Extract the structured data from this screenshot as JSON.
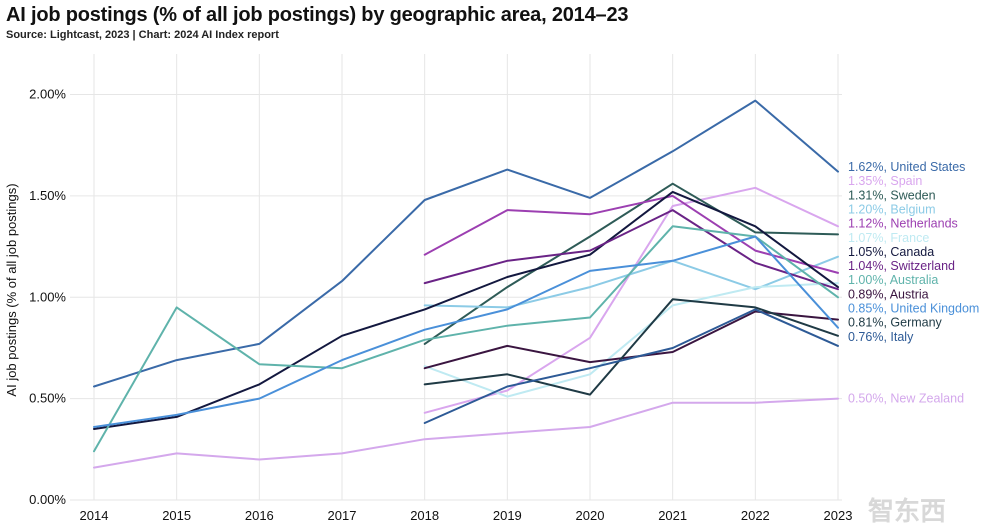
{
  "chart_data": {
    "type": "line",
    "title": "AI job postings (% of all job postings) by geographic area, 2014–23",
    "subtitle": "Source: Lightcast, 2023 | Chart: 2024 AI Index report",
    "ylabel": "AI job postings (% of all job postings)",
    "xlabel": "",
    "x": [
      2014,
      2015,
      2016,
      2017,
      2018,
      2019,
      2020,
      2021,
      2022,
      2023
    ],
    "x_tick_labels": [
      "2014",
      "2015",
      "2016",
      "2017",
      "2018",
      "2019",
      "2020",
      "2021",
      "2022",
      "2023"
    ],
    "ylim": [
      0,
      2.2
    ],
    "y_ticks": [
      0,
      0.5,
      1.0,
      1.5,
      2.0
    ],
    "y_tick_labels": [
      "0.00%",
      "0.50%",
      "1.00%",
      "1.50%",
      "2.00%"
    ],
    "grid": true,
    "series": [
      {
        "name": "United States",
        "label": "1.62%, United States",
        "color": "#3a6aa8",
        "x": [
          2014,
          2015,
          2016,
          2017,
          2018,
          2019,
          2020,
          2021,
          2022,
          2023
        ],
        "values": [
          0.56,
          0.69,
          0.77,
          1.08,
          1.48,
          1.63,
          1.49,
          1.72,
          1.97,
          1.62
        ]
      },
      {
        "name": "Spain",
        "label": "1.35%, Spain",
        "color": "#d9a6ee",
        "x": [
          2018,
          2019,
          2020,
          2021,
          2022,
          2023
        ],
        "values": [
          0.43,
          0.54,
          0.8,
          1.45,
          1.54,
          1.35
        ]
      },
      {
        "name": "Sweden",
        "label": "1.31%, Sweden",
        "color": "#2e5b57",
        "x": [
          2018,
          2019,
          2020,
          2021,
          2022,
          2023
        ],
        "values": [
          0.77,
          1.05,
          1.3,
          1.56,
          1.32,
          1.31
        ]
      },
      {
        "name": "Belgium",
        "label": "1.20%, Belgium",
        "color": "#8ccbe6",
        "x": [
          2018,
          2019,
          2020,
          2021,
          2022,
          2023
        ],
        "values": [
          0.96,
          0.95,
          1.05,
          1.18,
          1.04,
          1.2
        ]
      },
      {
        "name": "Netherlands",
        "label": "1.12%, Netherlands",
        "color": "#9c3fb1",
        "x": [
          2018,
          2019,
          2020,
          2021,
          2022,
          2023
        ],
        "values": [
          1.21,
          1.43,
          1.41,
          1.5,
          1.23,
          1.12
        ]
      },
      {
        "name": "France",
        "label": "1.07%, France",
        "color": "#bfeaf2",
        "x": [
          2018,
          2019,
          2020,
          2021,
          2022,
          2023
        ],
        "values": [
          0.66,
          0.51,
          0.62,
          0.96,
          1.05,
          1.07
        ]
      },
      {
        "name": "Canada",
        "label": "1.05%, Canada",
        "color": "#13183f",
        "x": [
          2014,
          2015,
          2016,
          2017,
          2018,
          2019,
          2020,
          2021,
          2022,
          2023
        ],
        "values": [
          0.35,
          0.41,
          0.57,
          0.81,
          0.94,
          1.1,
          1.21,
          1.52,
          1.35,
          1.05
        ]
      },
      {
        "name": "Switzerland",
        "label": "1.04%, Switzerland",
        "color": "#6a2386",
        "x": [
          2018,
          2019,
          2020,
          2021,
          2022,
          2023
        ],
        "values": [
          1.07,
          1.18,
          1.23,
          1.43,
          1.17,
          1.04
        ]
      },
      {
        "name": "Australia",
        "label": "1.00%, Australia",
        "color": "#5fb3ab",
        "x": [
          2014,
          2015,
          2016,
          2017,
          2018,
          2019,
          2020,
          2021,
          2022,
          2023
        ],
        "values": [
          0.24,
          0.95,
          0.67,
          0.65,
          0.79,
          0.86,
          0.9,
          1.35,
          1.3,
          1.0
        ]
      },
      {
        "name": "Austria",
        "label": "0.89%, Austria",
        "color": "#3a1540",
        "x": [
          2018,
          2019,
          2020,
          2021,
          2022,
          2023
        ],
        "values": [
          0.65,
          0.76,
          0.68,
          0.73,
          0.93,
          0.89
        ]
      },
      {
        "name": "United Kingdom",
        "label": "0.85%, United Kingdom",
        "color": "#4a90d9",
        "x": [
          2014,
          2015,
          2016,
          2017,
          2018,
          2019,
          2020,
          2021,
          2022,
          2023
        ],
        "values": [
          0.36,
          0.42,
          0.5,
          0.69,
          0.84,
          0.94,
          1.13,
          1.18,
          1.3,
          0.85
        ]
      },
      {
        "name": "Germany",
        "label": "0.81%, Germany",
        "color": "#1f3a45",
        "x": [
          2018,
          2019,
          2020,
          2021,
          2022,
          2023
        ],
        "values": [
          0.57,
          0.62,
          0.52,
          0.99,
          0.95,
          0.81
        ]
      },
      {
        "name": "Italy",
        "label": "0.76%, Italy",
        "color": "#2d5a96",
        "x": [
          2018,
          2019,
          2020,
          2021,
          2022,
          2023
        ],
        "values": [
          0.38,
          0.56,
          0.65,
          0.75,
          0.94,
          0.76
        ]
      },
      {
        "name": "New Zealand",
        "label": "0.50%, New Zealand",
        "color": "#d4a8ec",
        "x": [
          2014,
          2015,
          2016,
          2017,
          2018,
          2019,
          2020,
          2021,
          2022,
          2023
        ],
        "values": [
          0.16,
          0.23,
          0.2,
          0.23,
          0.3,
          0.33,
          0.36,
          0.48,
          0.48,
          0.5
        ]
      }
    ],
    "watermark": "智东西"
  }
}
